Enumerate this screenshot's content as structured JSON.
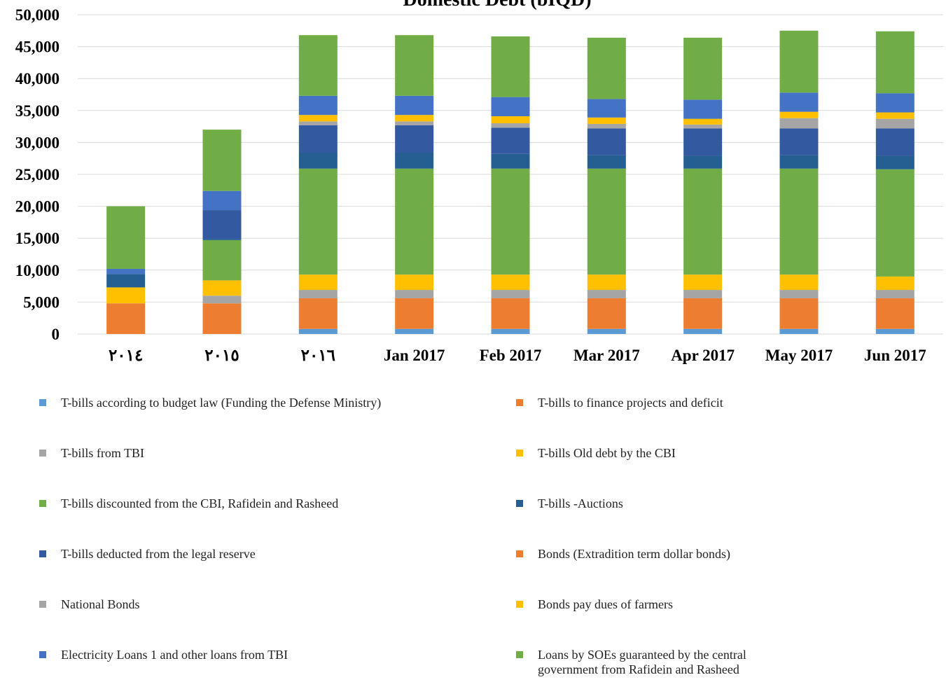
{
  "chart_data": {
    "type": "stacked_bar",
    "title": "Domestic Debt (bIQD)",
    "categories": [
      "٢٠١٤",
      "٢٠١٥",
      "٢٠١٦",
      "Jan 2017",
      "Feb 2017",
      "Mar 2017",
      "Apr 2017",
      "May 2017",
      "Jun 2017"
    ],
    "series": [
      {
        "name": "T-bills according to budget law (Funding the Defense Ministry)",
        "color": "#5b9bd5",
        "values": [
          0,
          0,
          800,
          800,
          800,
          800,
          800,
          800,
          800
        ]
      },
      {
        "name": "T-bills to finance projects and deficit",
        "color": "#ed7d31",
        "values": [
          4800,
          4800,
          4800,
          4800,
          4800,
          4800,
          4800,
          4800,
          4800
        ]
      },
      {
        "name": "T-bills from TBI",
        "color": "#a5a5a5",
        "values": [
          0,
          1200,
          1300,
          1300,
          1300,
          1300,
          1300,
          1300,
          1300
        ]
      },
      {
        "name": "T-bills Old debt by the CBI",
        "color": "#ffc000",
        "values": [
          2500,
          2400,
          2400,
          2400,
          2400,
          2400,
          2400,
          2400,
          2100
        ]
      },
      {
        "name": "T-bills discounted from the CBI, Rafidein and Rasheed",
        "color": "#70ad47",
        "values": [
          0,
          6300,
          16600,
          16600,
          16600,
          16600,
          16600,
          16600,
          16800
        ]
      },
      {
        "name": "T-bills -Auctions",
        "color": "#255e91",
        "values": [
          2100,
          200,
          2500,
          2500,
          2300,
          2100,
          2000,
          2100,
          2100
        ]
      },
      {
        "name": "T-bills deducted from the legal reserve",
        "color": "#335aa1",
        "values": [
          0,
          4500,
          4300,
          4300,
          4100,
          4200,
          4300,
          4200,
          4300
        ]
      },
      {
        "name": "Bonds (Extradition term dollar bonds)",
        "color": "#ed7d31",
        "values": [
          0,
          0,
          0,
          0,
          0,
          0,
          0,
          0,
          0
        ]
      },
      {
        "name": "National Bonds",
        "color": "#a5a5a5",
        "values": [
          0,
          0,
          600,
          600,
          700,
          700,
          600,
          1600,
          1500
        ]
      },
      {
        "name": "Bonds pay dues of farmers",
        "color": "#ffc000",
        "values": [
          0,
          0,
          1000,
          1000,
          1100,
          1000,
          900,
          1000,
          1000
        ]
      },
      {
        "name": "Electricity Loans 1  and other loans from TBI",
        "color": "#4472c4",
        "values": [
          800,
          3000,
          3000,
          3000,
          3000,
          2900,
          3000,
          3000,
          3000
        ]
      },
      {
        "name": "Loans by SOEs guaranteed by the central  government from Rafidein and Rasheed",
        "color": "#70ad47",
        "values": [
          9800,
          9600,
          9500,
          9500,
          9500,
          9600,
          9700,
          9700,
          9700
        ]
      }
    ],
    "ylim": [
      0,
      50000
    ],
    "yticks": [
      0,
      {
        "value": 5000,
        "label": "5,000"
      },
      {
        "value": 10000,
        "label": "10,000"
      },
      {
        "value": 15000,
        "label": "15,000"
      },
      {
        "value": 20000,
        "label": "20,000"
      },
      {
        "value": 25000,
        "label": "25,000"
      },
      {
        "value": 30000,
        "label": "30,000"
      },
      {
        "value": 35000,
        "label": "35,000"
      },
      {
        "value": 40000,
        "label": "40,000"
      },
      {
        "value": 45000,
        "label": "45,000"
      },
      {
        "value": 50000,
        "label": "50,000"
      }
    ],
    "grid": true
  }
}
